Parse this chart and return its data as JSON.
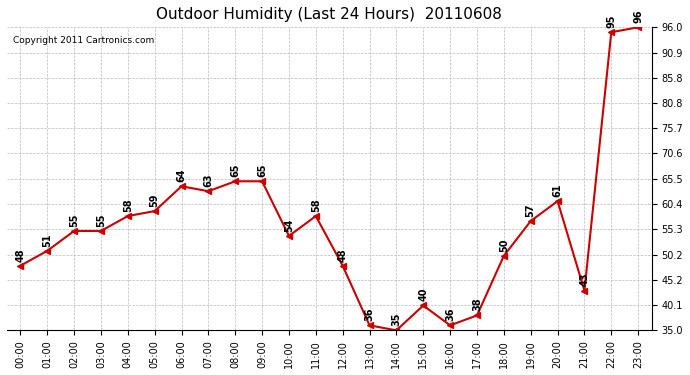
{
  "title": "Outdoor Humidity (Last 24 Hours)  20110608",
  "copyright": "Copyright 2011 Cartronics.com",
  "x_labels": [
    "00:00",
    "01:00",
    "02:00",
    "03:00",
    "04:00",
    "05:00",
    "06:00",
    "07:00",
    "08:00",
    "09:00",
    "10:00",
    "11:00",
    "12:00",
    "13:00",
    "14:00",
    "15:00",
    "16:00",
    "17:00",
    "18:00",
    "19:00",
    "20:00",
    "21:00",
    "22:00",
    "23:00"
  ],
  "y_values": [
    48,
    51,
    55,
    55,
    58,
    59,
    64,
    63,
    65,
    65,
    54,
    58,
    48,
    36,
    35,
    40,
    36,
    38,
    50,
    57,
    61,
    43,
    95,
    96
  ],
  "line_color": "#cc0000",
  "marker_color": "#cc0000",
  "bg_color": "#ffffff",
  "grid_color": "#bbbbbb",
  "ylim": [
    35.0,
    96.0
  ],
  "yticks": [
    35.0,
    40.1,
    45.2,
    50.2,
    55.3,
    60.4,
    65.5,
    70.6,
    75.7,
    80.8,
    85.8,
    90.9,
    96.0
  ]
}
